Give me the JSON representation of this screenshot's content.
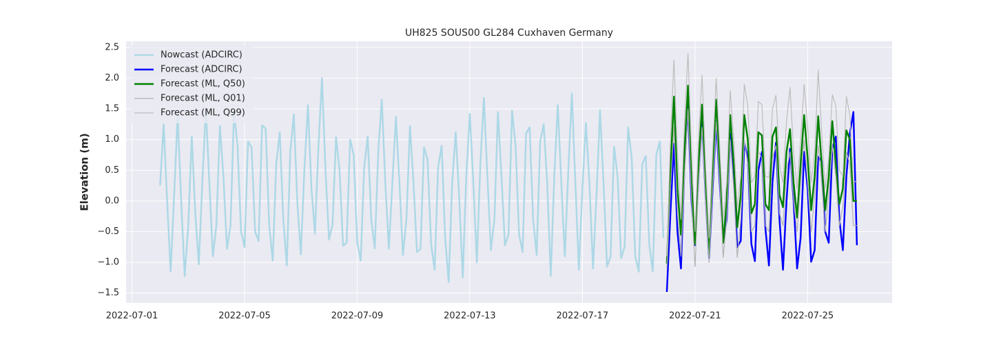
{
  "chart_data": {
    "type": "line",
    "title": "UH825 SOUS00 GL284 Cuxhaven Germany",
    "y_label": "Elevation (m)",
    "xlim": [
      "2022-06-30 19:00",
      "2022-07-28 00:00"
    ],
    "xticks": [
      "2022-07-01",
      "2022-07-05",
      "2022-07-09",
      "2022-07-13",
      "2022-07-17",
      "2022-07-21",
      "2022-07-25"
    ],
    "ylim": [
      -1.66,
      2.6
    ],
    "yticks": [
      {
        "value": -1.5,
        "label": "−1.5"
      },
      {
        "value": -1.0,
        "label": "−1.0"
      },
      {
        "value": -0.5,
        "label": "−0.5"
      },
      {
        "value": 0.0,
        "label": "0.0"
      },
      0.5,
      {
        "value": 1.0,
        "label": "1.0"
      },
      1.5,
      {
        "value": 2.0,
        "label": "2.0"
      },
      2.5
    ],
    "grid": true,
    "legend": "upper left",
    "series": [
      {
        "name": "Nowcast (ADCIRC)",
        "color": "#add8e6",
        "width": 2.5,
        "x": [
          "2022-07-02 00:00",
          "2022-07-02 03:00",
          "2022-07-02 06:00",
          "2022-07-02 09:00",
          "2022-07-02 12:00",
          "2022-07-02 15:00",
          "2022-07-02 18:00",
          "2022-07-02 21:00",
          "2022-07-03 00:00",
          "2022-07-03 03:00",
          "2022-07-03 06:00",
          "2022-07-03 09:00",
          "2022-07-03 12:00",
          "2022-07-03 15:00",
          "2022-07-03 18:00",
          "2022-07-03 21:00",
          "2022-07-04 00:00",
          "2022-07-04 03:00",
          "2022-07-04 06:00",
          "2022-07-04 09:00",
          "2022-07-04 12:00",
          "2022-07-04 15:00",
          "2022-07-04 18:00",
          "2022-07-04 21:00",
          "2022-07-05 00:00",
          "2022-07-05 03:00",
          "2022-07-05 06:00",
          "2022-07-05 09:00",
          "2022-07-05 12:00",
          "2022-07-05 15:00",
          "2022-07-05 18:00",
          "2022-07-05 21:00",
          "2022-07-06 00:00",
          "2022-07-06 03:00",
          "2022-07-06 06:00",
          "2022-07-06 09:00",
          "2022-07-06 12:00",
          "2022-07-06 15:00",
          "2022-07-06 18:00",
          "2022-07-06 21:00",
          "2022-07-07 00:00",
          "2022-07-07 03:00",
          "2022-07-07 06:00",
          "2022-07-07 09:00",
          "2022-07-07 12:00",
          "2022-07-07 15:00",
          "2022-07-07 18:00",
          "2022-07-07 21:00",
          "2022-07-08 00:00",
          "2022-07-08 03:00",
          "2022-07-08 06:00",
          "2022-07-08 09:00",
          "2022-07-08 12:00",
          "2022-07-08 15:00",
          "2022-07-08 18:00",
          "2022-07-08 21:00",
          "2022-07-09 00:00",
          "2022-07-09 03:00",
          "2022-07-09 06:00",
          "2022-07-09 09:00",
          "2022-07-09 12:00",
          "2022-07-09 15:00",
          "2022-07-09 18:00",
          "2022-07-09 21:00",
          "2022-07-10 00:00",
          "2022-07-10 03:00",
          "2022-07-10 06:00",
          "2022-07-10 09:00",
          "2022-07-10 12:00",
          "2022-07-10 15:00",
          "2022-07-10 18:00",
          "2022-07-10 21:00",
          "2022-07-11 00:00",
          "2022-07-11 03:00",
          "2022-07-11 06:00",
          "2022-07-11 09:00",
          "2022-07-11 12:00",
          "2022-07-11 15:00",
          "2022-07-11 18:00",
          "2022-07-11 21:00",
          "2022-07-12 00:00",
          "2022-07-12 03:00",
          "2022-07-12 06:00",
          "2022-07-12 09:00",
          "2022-07-12 12:00",
          "2022-07-12 15:00",
          "2022-07-12 18:00",
          "2022-07-12 21:00",
          "2022-07-13 00:00",
          "2022-07-13 03:00",
          "2022-07-13 06:00",
          "2022-07-13 09:00",
          "2022-07-13 12:00",
          "2022-07-13 15:00",
          "2022-07-13 18:00",
          "2022-07-13 21:00",
          "2022-07-14 00:00",
          "2022-07-14 03:00",
          "2022-07-14 06:00",
          "2022-07-14 09:00",
          "2022-07-14 12:00",
          "2022-07-14 15:00",
          "2022-07-14 18:00",
          "2022-07-14 21:00",
          "2022-07-15 00:00",
          "2022-07-15 03:00",
          "2022-07-15 06:00",
          "2022-07-15 09:00",
          "2022-07-15 12:00",
          "2022-07-15 15:00",
          "2022-07-15 18:00",
          "2022-07-15 21:00",
          "2022-07-16 00:00",
          "2022-07-16 03:00",
          "2022-07-16 06:00",
          "2022-07-16 09:00",
          "2022-07-16 12:00",
          "2022-07-16 15:00",
          "2022-07-16 18:00",
          "2022-07-16 21:00",
          "2022-07-17 00:00",
          "2022-07-17 03:00",
          "2022-07-17 06:00",
          "2022-07-17 09:00",
          "2022-07-17 12:00",
          "2022-07-17 15:00",
          "2022-07-17 18:00",
          "2022-07-17 21:00",
          "2022-07-18 00:00",
          "2022-07-18 03:00",
          "2022-07-18 06:00",
          "2022-07-18 09:00",
          "2022-07-18 12:00",
          "2022-07-18 15:00",
          "2022-07-18 18:00",
          "2022-07-18 21:00",
          "2022-07-19 00:00",
          "2022-07-19 03:00",
          "2022-07-19 06:00",
          "2022-07-19 09:00",
          "2022-07-19 12:00",
          "2022-07-19 15:00",
          "2022-07-19 18:00",
          "2022-07-19 21:00"
        ],
        "values": [
          0.25,
          1.25,
          0.0,
          -1.15,
          0.1,
          1.4,
          0.0,
          -1.22,
          -0.4,
          1.05,
          -0.2,
          -1.03,
          0.3,
          1.5,
          0.3,
          -0.9,
          -0.4,
          1.22,
          0.4,
          -0.78,
          -0.4,
          1.45,
          0.9,
          -0.5,
          -0.75,
          0.97,
          0.87,
          -0.5,
          -0.65,
          1.23,
          1.18,
          -0.4,
          -0.97,
          0.6,
          1.12,
          -0.3,
          -1.05,
          0.8,
          1.41,
          -0.02,
          -0.87,
          0.5,
          1.56,
          0.2,
          -0.53,
          0.9,
          2.0,
          0.5,
          -0.63,
          -0.38,
          1.04,
          0.5,
          -0.73,
          -0.68,
          1.0,
          0.75,
          -0.67,
          -0.97,
          0.55,
          1.05,
          -0.3,
          -0.77,
          0.8,
          1.65,
          0.3,
          -0.78,
          0.3,
          1.37,
          0.3,
          -0.88,
          -0.3,
          1.22,
          0.3,
          -0.83,
          -0.78,
          0.87,
          0.68,
          -0.7,
          -1.12,
          0.55,
          0.9,
          -0.6,
          -1.32,
          0.3,
          1.12,
          0.05,
          -1.25,
          0.4,
          1.42,
          0.3,
          -1.0,
          0.6,
          1.68,
          0.4,
          -0.8,
          -0.3,
          1.45,
          0.4,
          -0.72,
          -0.55,
          1.47,
          0.9,
          -0.55,
          -0.83,
          1.1,
          1.2,
          -0.3,
          -0.88,
          0.97,
          1.25,
          0.3,
          -1.22,
          0.4,
          1.56,
          0.3,
          -0.9,
          0.5,
          1.75,
          0.3,
          -1.12,
          0.2,
          1.27,
          0.3,
          -1.1,
          0.1,
          1.48,
          0.3,
          -1.07,
          -0.9,
          0.88,
          0.4,
          -0.93,
          -0.75,
          1.2,
          0.7,
          -0.9,
          -1.15,
          0.6,
          0.73,
          -0.7,
          -1.15,
          0.75,
          0.97,
          -0.6
        ]
      },
      {
        "name": "Forecast (ADCIRC)",
        "color": "#0000ff",
        "width": 2.5,
        "x": [
          "2022-07-20 00:00",
          "2022-07-20 03:00",
          "2022-07-20 06:00",
          "2022-07-20 09:00",
          "2022-07-20 12:00",
          "2022-07-20 15:00",
          "2022-07-20 18:00",
          "2022-07-20 21:00",
          "2022-07-21 00:00",
          "2022-07-21 03:00",
          "2022-07-21 06:00",
          "2022-07-21 09:00",
          "2022-07-21 12:00",
          "2022-07-21 15:00",
          "2022-07-21 18:00",
          "2022-07-21 21:00",
          "2022-07-22 00:00",
          "2022-07-22 03:00",
          "2022-07-22 06:00",
          "2022-07-22 09:00",
          "2022-07-22 12:00",
          "2022-07-22 15:00",
          "2022-07-22 18:00",
          "2022-07-22 21:00",
          "2022-07-23 00:00",
          "2022-07-23 03:00",
          "2022-07-23 06:00",
          "2022-07-23 09:00",
          "2022-07-23 12:00",
          "2022-07-23 15:00",
          "2022-07-23 18:00",
          "2022-07-23 21:00",
          "2022-07-24 00:00",
          "2022-07-24 03:00",
          "2022-07-24 06:00",
          "2022-07-24 09:00",
          "2022-07-24 12:00",
          "2022-07-24 15:00",
          "2022-07-24 18:00",
          "2022-07-24 21:00",
          "2022-07-25 00:00",
          "2022-07-25 03:00",
          "2022-07-25 06:00",
          "2022-07-25 09:00",
          "2022-07-25 12:00",
          "2022-07-25 15:00",
          "2022-07-25 18:00",
          "2022-07-25 21:00",
          "2022-07-26 00:00",
          "2022-07-26 03:00",
          "2022-07-26 06:00",
          "2022-07-26 09:00",
          "2022-07-26 12:00",
          "2022-07-26 15:00",
          "2022-07-26 18:00"
        ],
        "values": [
          -1.48,
          -0.2,
          0.93,
          -0.5,
          -1.1,
          0.6,
          1.55,
          0.0,
          -0.72,
          0.4,
          1.3,
          0.1,
          -0.93,
          0.2,
          1.3,
          0.3,
          -0.65,
          -0.3,
          1.1,
          0.4,
          -0.75,
          -0.65,
          0.95,
          0.7,
          -0.7,
          -0.98,
          0.5,
          0.8,
          -0.45,
          -1.05,
          0.3,
          0.95,
          -0.3,
          -1.12,
          0.0,
          0.85,
          0.0,
          -1.1,
          -0.6,
          0.8,
          0.2,
          -0.99,
          -0.8,
          0.72,
          0.65,
          -0.5,
          -0.68,
          0.85,
          1.05,
          -0.3,
          -0.8,
          0.4,
          1.1,
          1.45,
          -0.72
        ]
      },
      {
        "name": "Forecast (ML, Q50)",
        "color": "#008000",
        "width": 2.5,
        "x": [
          "2022-07-20 00:00",
          "2022-07-20 03:00",
          "2022-07-20 06:00",
          "2022-07-20 09:00",
          "2022-07-20 12:00",
          "2022-07-20 15:00",
          "2022-07-20 18:00",
          "2022-07-20 21:00",
          "2022-07-21 00:00",
          "2022-07-21 03:00",
          "2022-07-21 06:00",
          "2022-07-21 09:00",
          "2022-07-21 12:00",
          "2022-07-21 15:00",
          "2022-07-21 18:00",
          "2022-07-21 21:00",
          "2022-07-22 00:00",
          "2022-07-22 03:00",
          "2022-07-22 06:00",
          "2022-07-22 09:00",
          "2022-07-22 12:00",
          "2022-07-22 15:00",
          "2022-07-22 18:00",
          "2022-07-22 21:00",
          "2022-07-23 00:00",
          "2022-07-23 03:00",
          "2022-07-23 06:00",
          "2022-07-23 09:00",
          "2022-07-23 12:00",
          "2022-07-23 15:00",
          "2022-07-23 18:00",
          "2022-07-23 21:00",
          "2022-07-24 00:00",
          "2022-07-24 03:00",
          "2022-07-24 06:00",
          "2022-07-24 09:00",
          "2022-07-24 12:00",
          "2022-07-24 15:00",
          "2022-07-24 18:00",
          "2022-07-24 21:00",
          "2022-07-25 00:00",
          "2022-07-25 03:00",
          "2022-07-25 06:00",
          "2022-07-25 09:00",
          "2022-07-25 12:00",
          "2022-07-25 15:00",
          "2022-07-25 18:00",
          "2022-07-25 21:00",
          "2022-07-26 00:00",
          "2022-07-26 03:00",
          "2022-07-26 06:00",
          "2022-07-26 09:00",
          "2022-07-26 12:00",
          "2022-07-26 15:00",
          "2022-07-26 18:00"
        ],
        "values": [
          -1.02,
          0.5,
          1.7,
          0.2,
          -0.55,
          0.8,
          1.88,
          0.3,
          -0.7,
          0.6,
          1.57,
          0.3,
          -0.9,
          0.5,
          1.65,
          0.6,
          -0.68,
          0.0,
          1.4,
          0.6,
          -0.43,
          0.1,
          1.4,
          1.0,
          -0.2,
          -0.05,
          1.12,
          1.07,
          -0.05,
          -0.15,
          1.05,
          1.2,
          0.1,
          -0.1,
          0.8,
          1.17,
          0.3,
          -0.27,
          0.6,
          1.4,
          0.7,
          -0.15,
          0.4,
          1.38,
          0.6,
          -0.15,
          0.4,
          1.3,
          0.6,
          -0.05,
          0.2,
          1.15,
          1.0,
          0.0,
          0.0
        ]
      },
      {
        "name": "Forecast (ML, Q01)",
        "color": "#b0b0b0",
        "width": 1.2,
        "x": [
          "2022-07-20 00:00",
          "2022-07-20 03:00",
          "2022-07-20 06:00",
          "2022-07-20 09:00",
          "2022-07-20 12:00",
          "2022-07-20 15:00",
          "2022-07-20 18:00",
          "2022-07-20 21:00",
          "2022-07-21 00:00",
          "2022-07-21 03:00",
          "2022-07-21 06:00",
          "2022-07-21 09:00",
          "2022-07-21 12:00",
          "2022-07-21 15:00",
          "2022-07-21 18:00",
          "2022-07-21 21:00",
          "2022-07-22 00:00",
          "2022-07-22 03:00",
          "2022-07-22 06:00",
          "2022-07-22 09:00",
          "2022-07-22 12:00",
          "2022-07-22 15:00",
          "2022-07-22 18:00",
          "2022-07-22 21:00",
          "2022-07-23 00:00",
          "2022-07-23 03:00",
          "2022-07-23 06:00",
          "2022-07-23 09:00",
          "2022-07-23 12:00",
          "2022-07-23 15:00",
          "2022-07-23 18:00",
          "2022-07-23 21:00",
          "2022-07-24 00:00",
          "2022-07-24 03:00",
          "2022-07-24 06:00",
          "2022-07-24 09:00",
          "2022-07-24 12:00",
          "2022-07-24 15:00",
          "2022-07-24 18:00",
          "2022-07-24 21:00",
          "2022-07-25 00:00",
          "2022-07-25 03:00",
          "2022-07-25 06:00",
          "2022-07-25 09:00",
          "2022-07-25 12:00",
          "2022-07-25 15:00",
          "2022-07-25 18:00",
          "2022-07-25 21:00",
          "2022-07-26 00:00",
          "2022-07-26 03:00",
          "2022-07-26 06:00",
          "2022-07-26 09:00",
          "2022-07-26 12:00",
          "2022-07-26 15:00",
          "2022-07-26 18:00"
        ],
        "values": [
          -1.1,
          0.2,
          1.2,
          -0.2,
          -0.9,
          0.4,
          1.5,
          0.0,
          -1.07,
          0.3,
          1.2,
          0.0,
          -1.0,
          0.2,
          1.3,
          0.3,
          -0.92,
          -0.3,
          1.0,
          0.2,
          -0.92,
          -0.3,
          1.0,
          0.6,
          -0.5,
          -0.4,
          0.8,
          0.7,
          -0.4,
          -0.5,
          0.7,
          0.9,
          -0.2,
          -0.4,
          0.5,
          0.8,
          0.0,
          -0.5,
          0.3,
          1.0,
          0.3,
          -0.5,
          0.1,
          0.9,
          0.3,
          -0.5,
          0.1,
          0.9,
          0.4,
          -0.4,
          -0.1,
          0.8,
          0.6,
          -0.4,
          -0.4
        ]
      },
      {
        "name": "Forecast (ML, Q99)",
        "color": "#bdbdbd",
        "width": 1.2,
        "x": [
          "2022-07-20 00:00",
          "2022-07-20 03:00",
          "2022-07-20 06:00",
          "2022-07-20 09:00",
          "2022-07-20 12:00",
          "2022-07-20 15:00",
          "2022-07-20 18:00",
          "2022-07-20 21:00",
          "2022-07-21 00:00",
          "2022-07-21 03:00",
          "2022-07-21 06:00",
          "2022-07-21 09:00",
          "2022-07-21 12:00",
          "2022-07-21 15:00",
          "2022-07-21 18:00",
          "2022-07-21 21:00",
          "2022-07-22 00:00",
          "2022-07-22 03:00",
          "2022-07-22 06:00",
          "2022-07-22 09:00",
          "2022-07-22 12:00",
          "2022-07-22 15:00",
          "2022-07-22 18:00",
          "2022-07-22 21:00",
          "2022-07-23 00:00",
          "2022-07-23 03:00",
          "2022-07-23 06:00",
          "2022-07-23 09:00",
          "2022-07-23 12:00",
          "2022-07-23 15:00",
          "2022-07-23 18:00",
          "2022-07-23 21:00",
          "2022-07-24 00:00",
          "2022-07-24 03:00",
          "2022-07-24 06:00",
          "2022-07-24 09:00",
          "2022-07-24 12:00",
          "2022-07-24 15:00",
          "2022-07-24 18:00",
          "2022-07-24 21:00",
          "2022-07-25 00:00",
          "2022-07-25 03:00",
          "2022-07-25 06:00",
          "2022-07-25 09:00",
          "2022-07-25 12:00",
          "2022-07-25 15:00",
          "2022-07-25 18:00",
          "2022-07-25 21:00",
          "2022-07-26 00:00",
          "2022-07-26 03:00",
          "2022-07-26 06:00",
          "2022-07-26 09:00",
          "2022-07-26 12:00",
          "2022-07-26 15:00",
          "2022-07-26 18:00"
        ],
        "values": [
          -0.9,
          1.0,
          2.3,
          0.8,
          -0.3,
          1.3,
          2.4,
          0.8,
          -0.5,
          1.0,
          2.05,
          0.6,
          -0.6,
          0.8,
          2.0,
          0.9,
          -0.3,
          0.3,
          1.8,
          1.0,
          -0.1,
          0.4,
          1.9,
          1.55,
          0.3,
          0.4,
          1.62,
          1.57,
          0.4,
          0.38,
          1.5,
          1.72,
          0.6,
          0.3,
          1.3,
          1.85,
          0.8,
          0.2,
          1.0,
          1.9,
          1.2,
          0.3,
          0.8,
          2.13,
          1.1,
          0.2,
          0.7,
          1.73,
          1.55,
          0.5,
          0.4,
          1.7,
          1.4,
          0.3,
          0.33
        ]
      }
    ]
  }
}
